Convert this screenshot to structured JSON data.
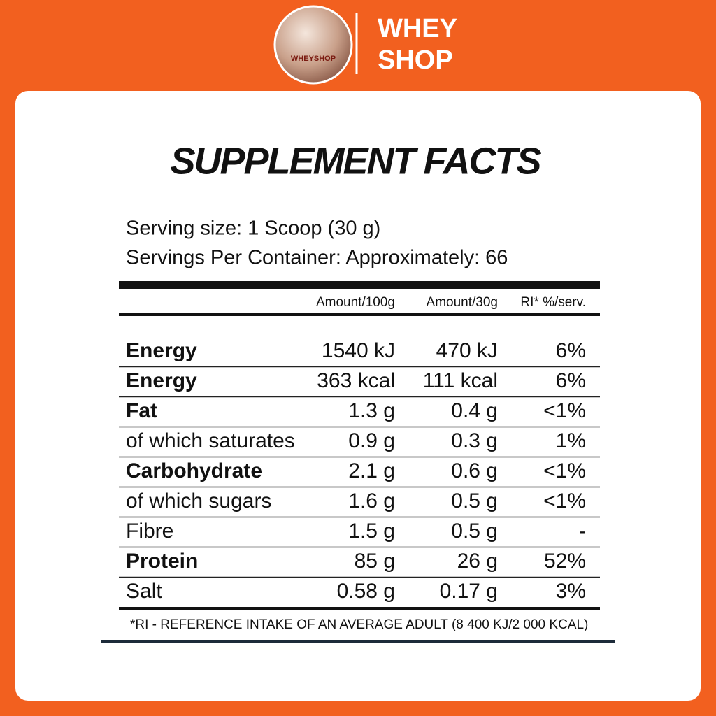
{
  "header": {
    "logo_text": "WHEYSHOP",
    "brand_lines": [
      "WHEY",
      "SHOP"
    ]
  },
  "title": "SUPPLEMENT FACTS",
  "serving": [
    "Serving size: 1 Scoop (30 g)",
    "Servings Per Container: Approximately: 66"
  ],
  "table": {
    "columns": [
      "Amount/100g",
      "Amount/30g",
      "RI* %/serv."
    ],
    "rows": [
      {
        "label": "Energy",
        "bold": true,
        "values": [
          "1540 kJ",
          "470 kJ",
          "6%"
        ]
      },
      {
        "label": "Energy",
        "bold": true,
        "values": [
          "363 kcal",
          "111 kcal",
          "6%"
        ]
      },
      {
        "label": "Fat",
        "bold": true,
        "values": [
          "1.3 g",
          "0.4 g",
          "<1%"
        ]
      },
      {
        "label": "of which saturates",
        "bold": false,
        "values": [
          "0.9 g",
          "0.3 g",
          "1%"
        ]
      },
      {
        "label": "Carbohydrate",
        "bold": true,
        "values": [
          "2.1 g",
          "0.6 g",
          "<1%"
        ]
      },
      {
        "label": "of which sugars",
        "bold": false,
        "values": [
          "1.6 g",
          "0.5 g",
          "<1%"
        ]
      },
      {
        "label": "Fibre",
        "bold": false,
        "values": [
          "1.5 g",
          "0.5 g",
          "-"
        ]
      },
      {
        "label": "Protein",
        "bold": true,
        "values": [
          "85 g",
          "26 g",
          "52%"
        ]
      },
      {
        "label": "Salt",
        "bold": false,
        "values": [
          "0.58 g",
          "0.17 g",
          "3%"
        ]
      }
    ]
  },
  "footnote": "*RI - REFERENCE INTAKE OF AN AVERAGE ADULT (8 400 KJ/2 000 KCAL)"
}
